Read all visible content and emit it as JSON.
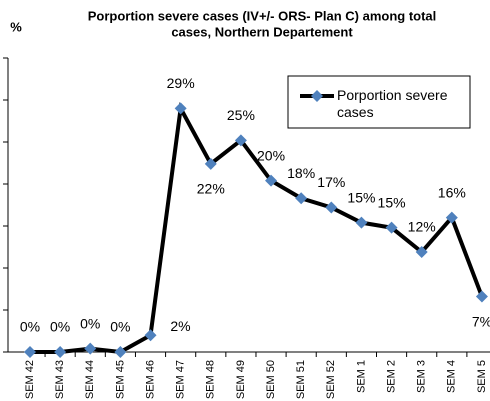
{
  "chart_data": {
    "type": "line",
    "title_lines": [
      "Porportion severe  cases  (IV+/- ORS- Plan C) among total",
      "cases, Northern Departement"
    ],
    "y_label": "%",
    "categories": [
      "SEM 42",
      "SEM 43",
      "SEM 44",
      "SEM 45",
      "SEM 46",
      "SEM 47",
      "SEM 48",
      "SEM 49",
      "SEM 50",
      "SEM 51",
      "SEM 52",
      "SEM 1",
      "SEM 2",
      "SEM 3",
      "SEM 4",
      "SEM 5"
    ],
    "series": [
      {
        "name": "Porportion severe cases",
        "color": "#000000",
        "marker_color": "#4f81bd",
        "values": [
          0,
          0,
          0.4,
          0,
          2,
          29,
          22.4,
          25.2,
          20.4,
          18.3,
          17.2,
          15.4,
          14.8,
          11.9,
          16,
          6.6
        ],
        "value_labels": [
          "0%",
          "0%",
          "0%",
          "0%",
          "2%",
          "29%",
          "22%",
          "25%",
          "20%",
          "18%",
          "17%",
          "15%",
          "15%",
          "12%",
          "16%",
          "7%"
        ]
      }
    ],
    "ylim": [
      0,
      35
    ],
    "yticks": [
      0,
      5,
      10,
      15,
      20,
      25,
      30,
      35
    ]
  }
}
